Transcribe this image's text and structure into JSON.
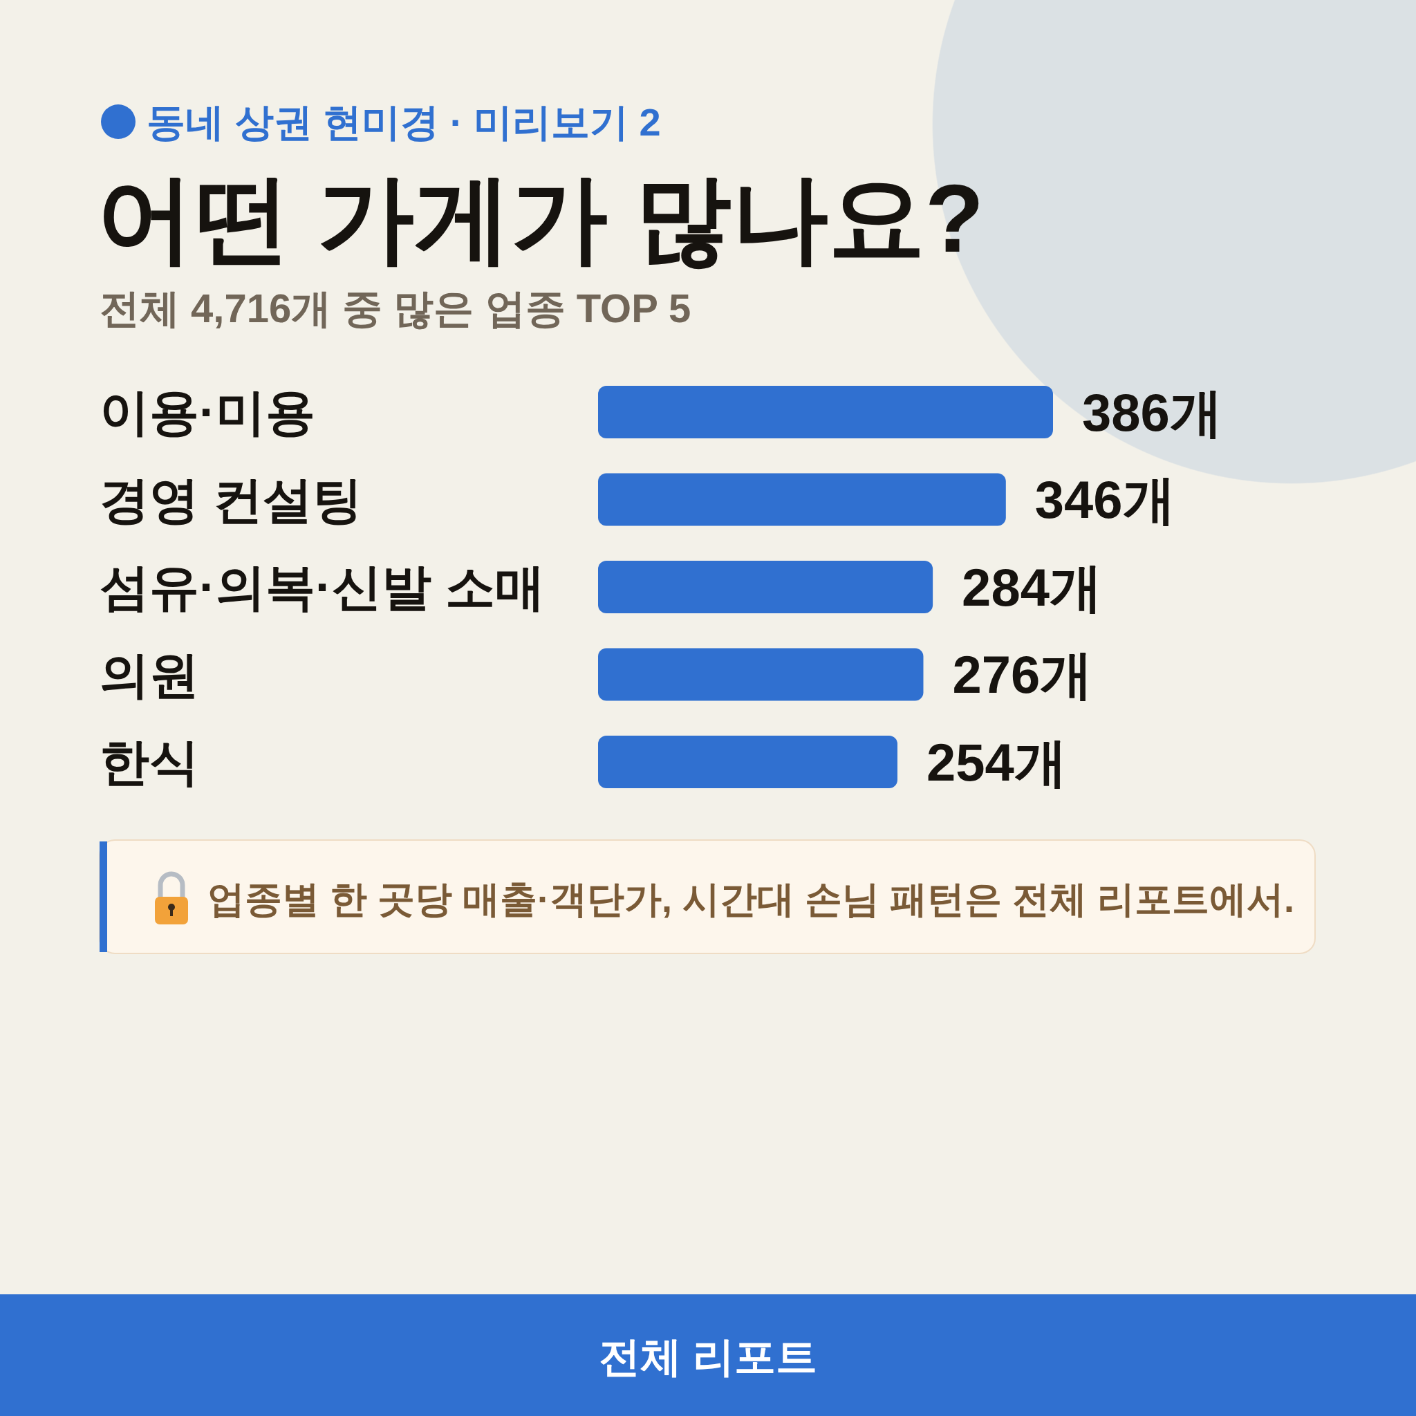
{
  "chart_data": {
    "type": "bar",
    "orientation": "horizontal",
    "title": "어떤 가게가 많나요?",
    "subtitle": "전체 4,716개 중 많은 업종 TOP 5",
    "categories": [
      "이용·미용",
      "경영 컨설팅",
      "섬유·의복·신발 소매",
      "의원",
      "한식"
    ],
    "values": [
      386,
      346,
      284,
      276,
      254
    ],
    "color": "#3070d0",
    "value_labels": [
      "386개",
      "346개",
      "284개",
      "276개",
      "254개"
    ],
    "annotations": [
      "동네 상권 현미경 · 미리보기 2",
      "업종별 한 곳당 매출·객단가, 시간대 손님 패턴은 전체 리포트에서.",
      "전체 리포트"
    ]
  }
}
